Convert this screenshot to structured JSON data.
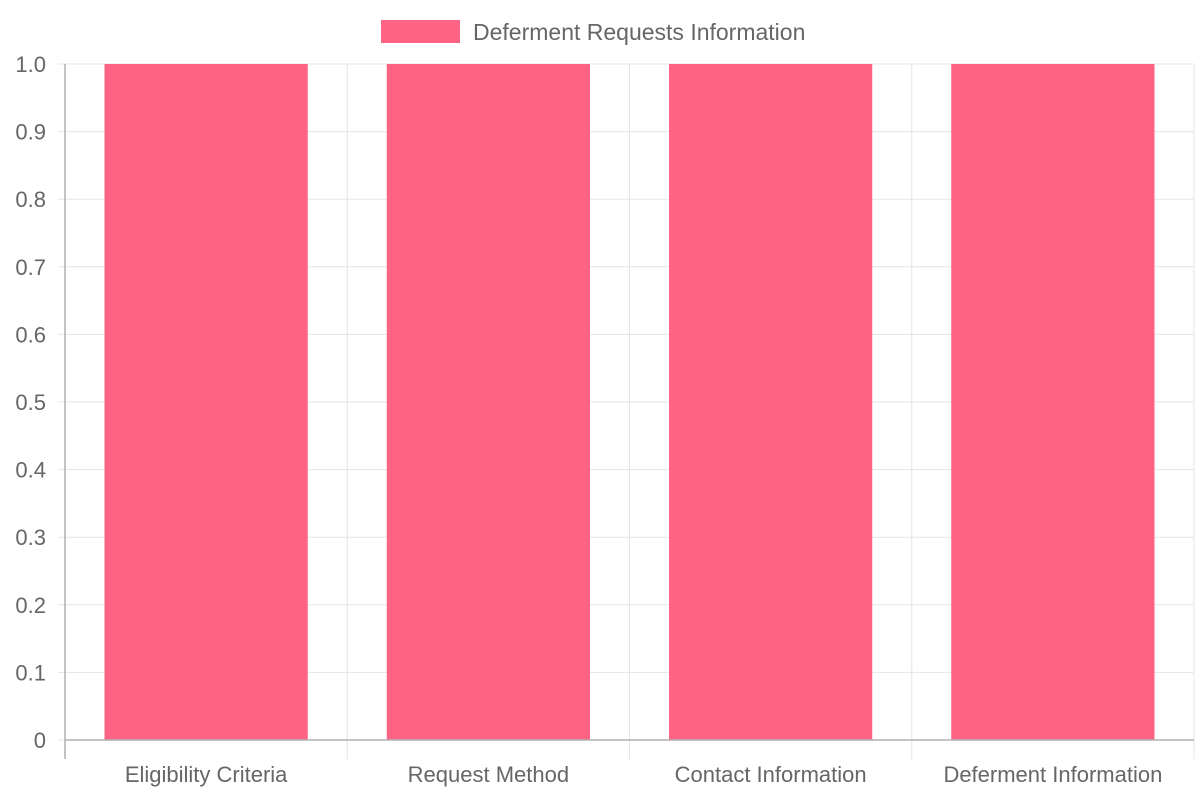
{
  "chart_data": {
    "type": "bar",
    "categories": [
      "Eligibility Criteria",
      "Request Method",
      "Contact Information",
      "Deferment Information"
    ],
    "series": [
      {
        "name": "Deferment Requests Information",
        "values": [
          1,
          1,
          1,
          1
        ],
        "color": "#ff6384"
      }
    ],
    "title": "",
    "xlabel": "",
    "ylabel": "",
    "ylim": [
      0,
      1
    ],
    "yticks": [
      "0",
      "0.1",
      "0.2",
      "0.3",
      "0.4",
      "0.5",
      "0.6",
      "0.7",
      "0.8",
      "0.9",
      "1.0"
    ],
    "grid": true,
    "legend_position": "top",
    "colors": {
      "grid": "#e5e5e5",
      "axis": "#b0b0b0",
      "text": "#666666"
    }
  }
}
